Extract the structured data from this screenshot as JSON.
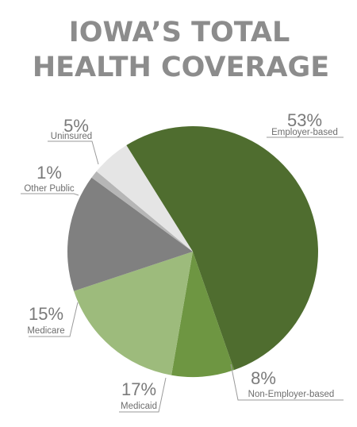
{
  "chart_data": {
    "type": "pie",
    "title_lines": [
      "IOWA’S TOTAL",
      "HEALTH COVERAGE"
    ],
    "slices": [
      {
        "label": "Employer-based",
        "value": 53,
        "value_label": "53%",
        "color": "#4f6d2f"
      },
      {
        "label": "Non-Employer-based",
        "value": 8,
        "value_label": "8%",
        "color": "#6e9642"
      },
      {
        "label": "Medicaid",
        "value": 17,
        "value_label": "17%",
        "color": "#9dbb7c"
      },
      {
        "label": "Medicare",
        "value": 15,
        "value_label": "15%",
        "color": "#808080"
      },
      {
        "label": "Other Public",
        "value": 1,
        "value_label": "1%",
        "color": "#b6b6b6"
      },
      {
        "label": "Uninsured",
        "value": 5,
        "value_label": "5%",
        "color": "#e5e5e5"
      }
    ],
    "legend": "none"
  }
}
